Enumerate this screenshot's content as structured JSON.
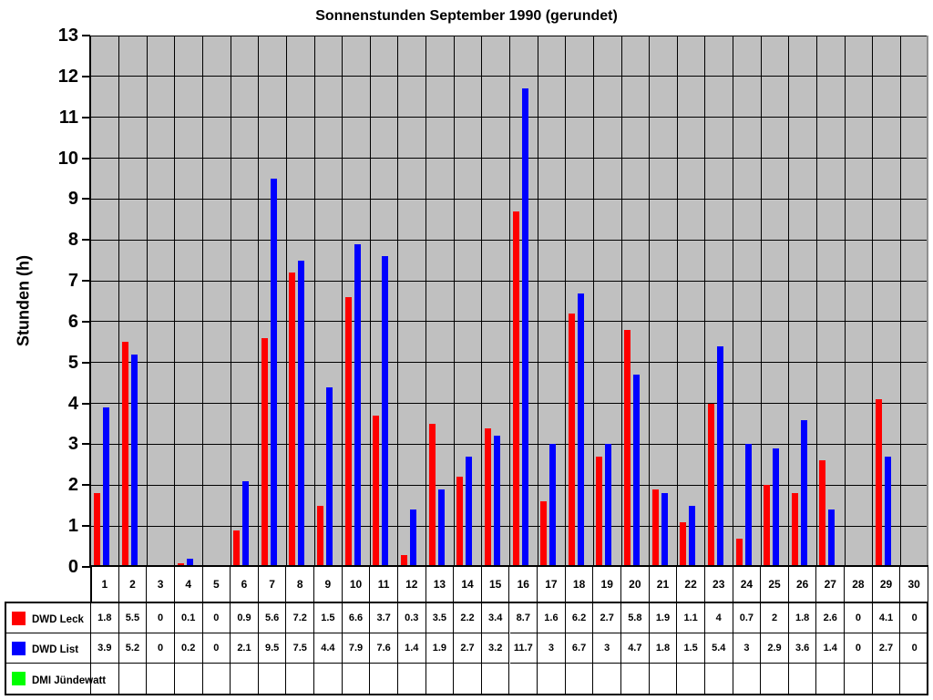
{
  "chart_data": {
    "type": "bar",
    "title": "Sonnenstunden September 1990 (gerundet)",
    "ylabel": "Stunden (h)",
    "xlabel": "",
    "ylim": [
      0,
      13
    ],
    "ytick_step": 1,
    "grid": true,
    "plot_background": "#c0c0c0",
    "gridline_color": "#000000",
    "legend_position": "table-bottom-left",
    "categories": [
      "1",
      "2",
      "3",
      "4",
      "5",
      "6",
      "7",
      "8",
      "9",
      "10",
      "11",
      "12",
      "13",
      "14",
      "15",
      "16",
      "17",
      "18",
      "19",
      "20",
      "21",
      "22",
      "23",
      "24",
      "25",
      "26",
      "27",
      "28",
      "29",
      "30"
    ],
    "series": [
      {
        "name": "DWD Leck",
        "color": "#ff0000",
        "values": [
          1.8,
          5.5,
          0,
          0.1,
          0,
          0.9,
          5.6,
          7.2,
          1.5,
          6.6,
          3.7,
          0.3,
          3.5,
          2.2,
          3.4,
          8.7,
          1.6,
          6.2,
          2.7,
          5.8,
          1.9,
          1.1,
          4,
          0.7,
          2,
          1.8,
          2.6,
          0,
          4.1,
          0
        ]
      },
      {
        "name": "DWD List",
        "color": "#0000ff",
        "values": [
          3.9,
          5.2,
          0,
          0.2,
          0,
          2.1,
          9.5,
          7.5,
          4.4,
          7.9,
          7.6,
          1.4,
          1.9,
          2.7,
          3.2,
          11.7,
          3,
          6.7,
          3,
          4.7,
          1.8,
          1.5,
          5.4,
          3,
          2.9,
          3.6,
          1.4,
          0,
          2.7,
          0
        ]
      },
      {
        "name": "DMI Jündewatt",
        "color": "#00ff00",
        "values": [
          null,
          null,
          null,
          null,
          null,
          null,
          null,
          null,
          null,
          null,
          null,
          null,
          null,
          null,
          null,
          null,
          null,
          null,
          null,
          null,
          null,
          null,
          null,
          null,
          null,
          null,
          null,
          null,
          null,
          null
        ]
      }
    ]
  }
}
